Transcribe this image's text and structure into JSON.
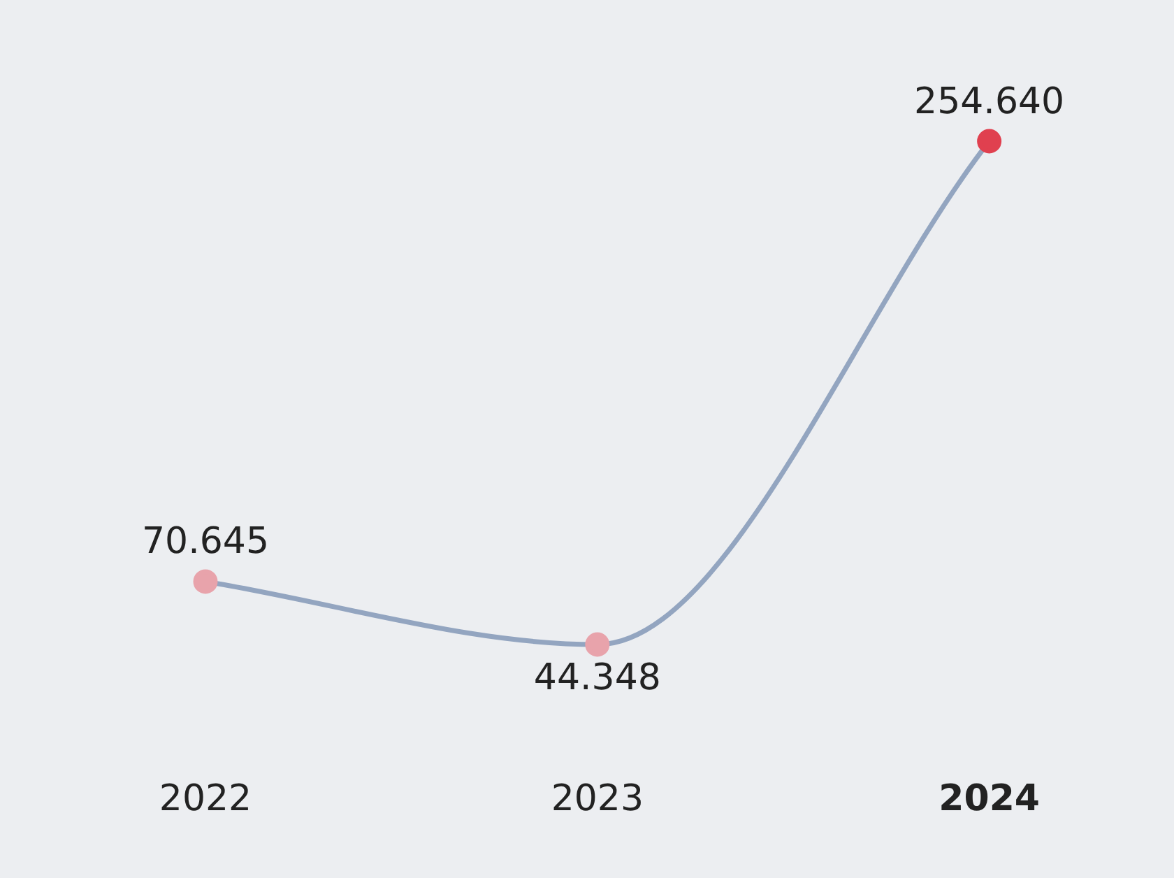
{
  "chart_data": {
    "type": "line",
    "categories": [
      "2022",
      "2023",
      "2024"
    ],
    "series": [
      {
        "color": "#93a5c0",
        "colors": [
          "#e8a3ab",
          "#e8a3ab",
          "#e0404f"
        ],
        "values": [
          70.645,
          44.348,
          254.64
        ],
        "value_labels": [
          "70.645",
          "44.348",
          "254.640"
        ]
      }
    ],
    "marker": "circle",
    "legend": false,
    "grid": false,
    "tick_labels": "x"
  }
}
